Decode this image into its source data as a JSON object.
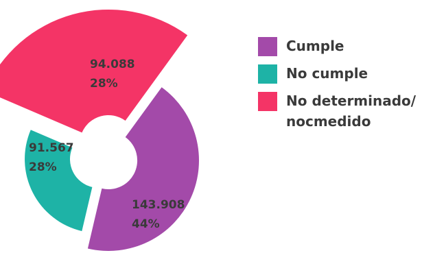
{
  "colors": {
    "cumple": "#a34aa9",
    "no_cumple": "#1eb3a6",
    "no_determinado": "#f43466"
  },
  "chart_data": {
    "type": "pie",
    "variant": "exploded-donut",
    "legend_placement": "right",
    "slices": [
      {
        "label": "Cumple",
        "value": 143908,
        "value_text": "143.908",
        "percent_text": "44%",
        "color": "#a34aa9"
      },
      {
        "label": "No cumple",
        "value": 91567,
        "value_text": "91.567",
        "percent_text": "28%",
        "color": "#1eb3a6"
      },
      {
        "label": "No determinado/ nocmedido",
        "value": 94088,
        "value_text": "94.088",
        "percent_text": "28%",
        "color": "#f43466"
      }
    ]
  }
}
